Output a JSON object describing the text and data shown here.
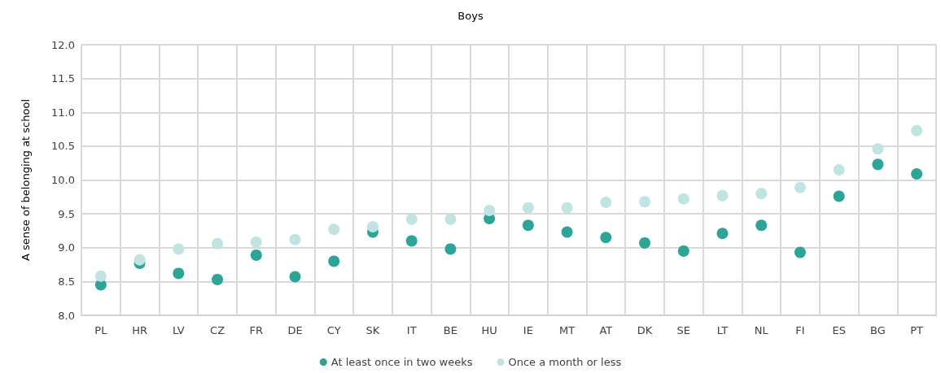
{
  "chart_data": {
    "type": "scatter",
    "title": "Boys",
    "ylabel": "A sense of belonging at school",
    "categories": [
      "PL",
      "HR",
      "LV",
      "CZ",
      "FR",
      "DE",
      "CY",
      "SK",
      "IT",
      "BE",
      "HU",
      "IE",
      "MT",
      "AT",
      "DK",
      "SE",
      "LT",
      "NL",
      "FI",
      "ES",
      "BG",
      "PT"
    ],
    "series": [
      {
        "name": "At least once in two weeks",
        "color": "#2aa598",
        "values": [
          8.45,
          8.77,
          8.62,
          8.53,
          8.89,
          8.57,
          8.8,
          9.23,
          9.1,
          8.98,
          9.43,
          9.33,
          9.23,
          9.15,
          9.07,
          8.95,
          9.21,
          9.33,
          8.93,
          9.76,
          10.23,
          10.09
        ]
      },
      {
        "name": "Once a month or less",
        "color": "#c0e4e1",
        "values": [
          8.58,
          8.82,
          8.98,
          9.06,
          9.08,
          9.12,
          9.27,
          9.31,
          9.42,
          9.42,
          9.55,
          9.59,
          9.59,
          9.67,
          9.68,
          9.72,
          9.77,
          9.8,
          9.89,
          10.15,
          10.46,
          10.73
        ]
      }
    ],
    "ylim": [
      8.0,
      12.0
    ],
    "yticks": [
      {
        "value": 8,
        "label": "8.0"
      },
      8.5,
      {
        "value": 9,
        "label": "9.0"
      },
      9.5,
      {
        "value": 10,
        "label": "10.0"
      },
      10.5,
      {
        "value": 11,
        "label": "11.0"
      },
      11.5,
      {
        "value": 12,
        "label": "12.0"
      }
    ],
    "grid": true,
    "legend": "bottom",
    "marker": "circle"
  }
}
